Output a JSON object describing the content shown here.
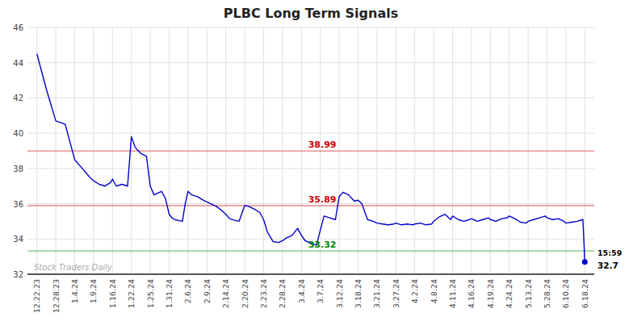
{
  "chart_data": {
    "type": "line",
    "title": "PLBC Long Term Signals",
    "x": [
      0,
      0.5,
      1,
      1.5,
      2,
      2.4,
      2.8,
      3,
      3.3,
      3.6,
      3.9,
      4,
      4.2,
      4.5,
      4.8,
      5,
      5.2,
      5.5,
      5.8,
      6,
      6.2,
      6.4,
      6.6,
      6.8,
      7,
      7.15,
      7.3,
      7.5,
      7.7,
      7.85,
      8,
      8.2,
      8.5,
      8.8,
      9,
      9.2,
      9.5,
      9.8,
      10,
      10.2,
      10.5,
      10.7,
      11,
      11.2,
      11.5,
      11.8,
      12,
      12.2,
      12.5,
      12.8,
      13,
      13.2,
      13.5,
      13.8,
      14,
      14.2,
      14.5,
      14.8,
      15,
      15.2,
      15.5,
      15.8,
      16,
      16.2,
      16.5,
      16.8,
      17,
      17.2,
      17.5,
      17.8,
      18,
      18.3,
      18.6,
      18.9,
      19,
      19.3,
      19.6,
      19.9,
      20,
      20.3,
      20.6,
      20.9,
      21,
      21.3,
      21.6,
      21.9,
      22,
      22.3,
      22.6,
      22.9,
      23,
      23.3,
      23.6,
      23.9,
      24,
      24.3,
      24.6,
      24.9,
      25,
      25.3,
      25.6,
      25.9,
      26,
      26.3,
      26.6,
      26.9,
      27,
      27.3,
      27.6,
      27.9,
      28,
      28.3,
      28.6,
      28.9,
      29
    ],
    "values": [
      44.5,
      42.5,
      40.7,
      40.5,
      38.5,
      38.0,
      37.5,
      37.3,
      37.1,
      37.0,
      37.2,
      37.4,
      37.0,
      37.1,
      37.0,
      39.8,
      39.2,
      38.85,
      38.7,
      37.0,
      36.5,
      36.6,
      36.7,
      36.3,
      35.4,
      35.2,
      35.1,
      35.05,
      35.0,
      36.0,
      36.7,
      36.5,
      36.4,
      36.2,
      36.1,
      36.0,
      35.85,
      35.6,
      35.4,
      35.15,
      35.05,
      35.0,
      35.9,
      35.85,
      35.7,
      35.5,
      35.1,
      34.4,
      33.85,
      33.8,
      33.9,
      34.05,
      34.2,
      34.6,
      34.2,
      33.9,
      33.75,
      33.65,
      34.5,
      35.3,
      35.2,
      35.1,
      36.4,
      36.65,
      36.5,
      36.15,
      36.2,
      36.0,
      35.1,
      35.0,
      34.9,
      34.85,
      34.8,
      34.85,
      34.9,
      34.8,
      34.85,
      34.8,
      34.85,
      34.9,
      34.8,
      34.85,
      35.0,
      35.25,
      35.4,
      35.1,
      35.3,
      35.1,
      35.0,
      35.1,
      35.15,
      35.0,
      35.1,
      35.2,
      35.1,
      35.0,
      35.15,
      35.2,
      35.3,
      35.15,
      34.95,
      34.9,
      35.0,
      35.1,
      35.2,
      35.3,
      35.2,
      35.1,
      35.15,
      35.0,
      34.9,
      34.95,
      35.0,
      35.1,
      32.7
    ],
    "color": "#0000cc",
    "xlim": [
      -0.5,
      29.5
    ],
    "xticks": [
      {
        "value": 0,
        "label": "12.22.23"
      },
      {
        "value": 1,
        "label": "12.28.23"
      },
      {
        "value": 2,
        "label": "1.4.24"
      },
      {
        "value": 3,
        "label": "1.9.24"
      },
      {
        "value": 4,
        "label": "1.16.24"
      },
      {
        "value": 5,
        "label": "1.22.24"
      },
      {
        "value": 6,
        "label": "1.25.24"
      },
      {
        "value": 7,
        "label": "1.31.24"
      },
      {
        "value": 8,
        "label": "2.6.24"
      },
      {
        "value": 9,
        "label": "2.9.24"
      },
      {
        "value": 10,
        "label": "2.14.24"
      },
      {
        "value": 11,
        "label": "2.20.24"
      },
      {
        "value": 12,
        "label": "2.23.24"
      },
      {
        "value": 13,
        "label": "2.28.24"
      },
      {
        "value": 14,
        "label": "3.4.24"
      },
      {
        "value": 15,
        "label": "3.7.24"
      },
      {
        "value": 16,
        "label": "3.12.24"
      },
      {
        "value": 17,
        "label": "3.18.24"
      },
      {
        "value": 18,
        "label": "3.21.24"
      },
      {
        "value": 19,
        "label": "3.27.24"
      },
      {
        "value": 20,
        "label": "4.2.24"
      },
      {
        "value": 21,
        "label": "4.8.24"
      },
      {
        "value": 22,
        "label": "4.11.24"
      },
      {
        "value": 23,
        "label": "4.16.24"
      },
      {
        "value": 24,
        "label": "4.19.24"
      },
      {
        "value": 25,
        "label": "4.24.24"
      },
      {
        "value": 26,
        "label": "5.13.24"
      },
      {
        "value": 27,
        "label": "5.28.24"
      },
      {
        "value": 28,
        "label": "6.10.24"
      },
      {
        "value": 29,
        "label": "6.18.24"
      }
    ],
    "ylim": [
      32,
      46
    ],
    "yticks": [
      32,
      34,
      36,
      38,
      40,
      42,
      44,
      46
    ],
    "grid": true,
    "hlines": [
      {
        "value": 38.99,
        "label": "38.99",
        "color": "#cc0000"
      },
      {
        "value": 35.89,
        "label": "35.89",
        "color": "#cc0000"
      },
      {
        "value": 33.32,
        "label": "33.32",
        "color": "#008800"
      }
    ],
    "annotations": [
      {
        "text": "15:59"
      }
    ],
    "watermark": "Stock Traders Daily"
  }
}
